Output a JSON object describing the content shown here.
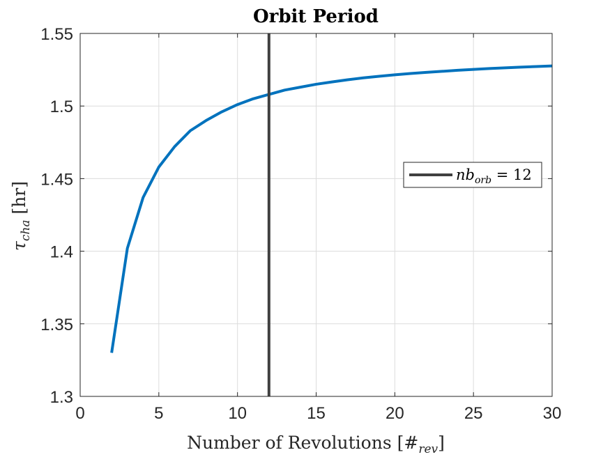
{
  "chart_data": {
    "type": "line",
    "title": "Orbit Period",
    "xlabel": "Number of Revolutions [#rev]",
    "ylabel": "τcha [hr]",
    "xlim": [
      0,
      30
    ],
    "ylim": [
      1.3,
      1.55
    ],
    "xticks": [
      0,
      5,
      10,
      15,
      20,
      25,
      30
    ],
    "yticks": [
      1.3,
      1.35,
      1.4,
      1.45,
      1.5,
      1.55
    ],
    "xtick_labels": [
      "0",
      "5",
      "10",
      "15",
      "20",
      "25",
      "30"
    ],
    "ytick_labels": [
      "1.3",
      "1.35",
      "1.4",
      "1.45",
      "1.5",
      "1.55"
    ],
    "grid": true,
    "legend_position": "right",
    "series": [
      {
        "color": "#0072BD",
        "x": [
          2,
          3,
          4,
          5,
          6,
          7,
          8,
          9,
          10,
          11,
          12,
          13,
          14,
          15,
          16,
          17,
          18,
          19,
          20,
          21,
          22,
          23,
          24,
          25,
          26,
          27,
          28,
          29,
          30
        ],
        "values": [
          1.33,
          1.402,
          1.437,
          1.458,
          1.472,
          1.483,
          1.49,
          1.496,
          1.501,
          1.505,
          1.508,
          1.511,
          1.513,
          1.515,
          1.5166,
          1.5181,
          1.5194,
          1.5205,
          1.5215,
          1.5224,
          1.5232,
          1.5239,
          1.5246,
          1.5252,
          1.5258,
          1.5263,
          1.5268,
          1.5272,
          1.5276
        ]
      }
    ],
    "vertical_line": {
      "x": 12,
      "color": "#404040",
      "legend": {
        "main": "nb",
        "subscript": "orb",
        "suffix": " = 12"
      }
    }
  }
}
